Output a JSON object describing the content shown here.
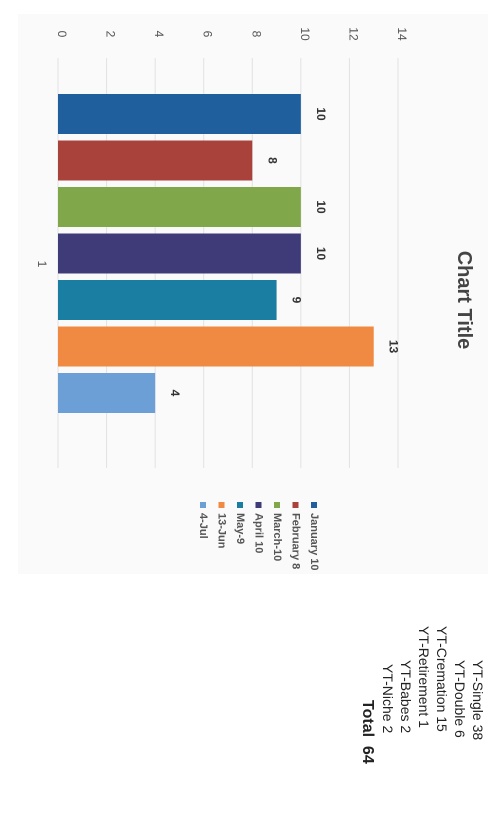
{
  "chart_data": {
    "type": "bar",
    "title": "Chart Title",
    "categories": [
      "1"
    ],
    "series": [
      {
        "name": "January 10",
        "values": [
          10
        ],
        "color": "#1f5f9e"
      },
      {
        "name": "February 8",
        "values": [
          8
        ],
        "color": "#a8423a"
      },
      {
        "name": "March-10",
        "values": [
          10
        ],
        "color": "#80a84a"
      },
      {
        "name": "April 10",
        "values": [
          10
        ],
        "color": "#3f3a78"
      },
      {
        "name": "May-9",
        "values": [
          9
        ],
        "color": "#1a7ea3"
      },
      {
        "name": "13-Jun",
        "values": [
          13
        ],
        "color": "#f08a43"
      },
      {
        "name": "4-Jul",
        "values": [
          4
        ],
        "color": "#6b9fd6"
      }
    ],
    "data_labels": [
      "10",
      "8",
      "10",
      "10",
      "9",
      "13",
      "4"
    ],
    "y_ticks": [
      "0",
      "2",
      "4",
      "6",
      "8",
      "10",
      "12",
      "14"
    ],
    "ylim": [
      0,
      14
    ],
    "legend_position": "right",
    "grid": true
  },
  "summary": {
    "items": [
      {
        "label": "YT-Single",
        "value": "38"
      },
      {
        "label": "YT-Double",
        "value": "6"
      },
      {
        "label": "YT-Cremation",
        "value": "15"
      },
      {
        "label": "YT-Retirement",
        "value": "1"
      },
      {
        "label": "YT-Babes",
        "value": "2"
      },
      {
        "label": "YT-Niche",
        "value": "2"
      }
    ],
    "total_label": "Total",
    "total_value": "64"
  }
}
